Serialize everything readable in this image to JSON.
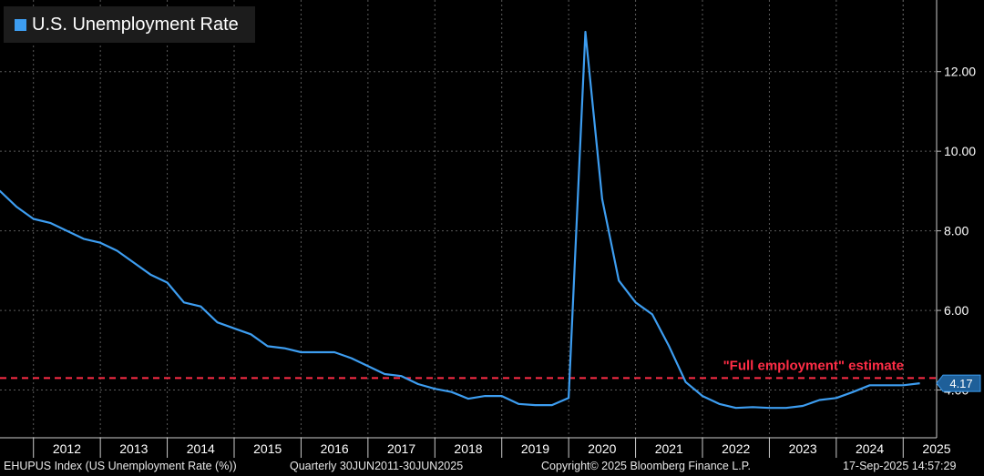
{
  "legend": {
    "label": "U.S. Unemployment Rate",
    "color": "#3d9df0"
  },
  "annotation": {
    "text": "\"Full employment\" estimate",
    "value": 4.3,
    "color": "#ff2d46"
  },
  "last_value": {
    "text": "4.17",
    "value": 4.17
  },
  "footer": {
    "left": "EHUPUS Index (US Unemployment Rate (%))",
    "middle": "Quarterly 30JUN2011-30JUN2025",
    "right": "Copyright© 2025 Bloomberg Finance L.P.",
    "timestamp": "17-Sep-2025 14:57:29"
  },
  "chart_data": {
    "type": "line",
    "title": "",
    "xlabel": "",
    "ylabel": "",
    "ylim": [
      2.8,
      13.8
    ],
    "y_ticks": [
      "4.00",
      "6.00",
      "8.00",
      "10.00",
      "12.00"
    ],
    "x_ticks": [
      "2012",
      "2013",
      "2014",
      "2015",
      "2016",
      "2017",
      "2018",
      "2019",
      "2020",
      "2021",
      "2022",
      "2023",
      "2024",
      "2025"
    ],
    "grid": true,
    "series": [
      {
        "name": "U.S. Unemployment Rate",
        "color": "#3d9df0",
        "x": [
          "2011-Q2",
          "2011-Q3",
          "2011-Q4",
          "2012-Q1",
          "2012-Q2",
          "2012-Q3",
          "2012-Q4",
          "2013-Q1",
          "2013-Q2",
          "2013-Q3",
          "2013-Q4",
          "2014-Q1",
          "2014-Q2",
          "2014-Q3",
          "2014-Q4",
          "2015-Q1",
          "2015-Q2",
          "2015-Q3",
          "2015-Q4",
          "2016-Q1",
          "2016-Q2",
          "2016-Q3",
          "2016-Q4",
          "2017-Q1",
          "2017-Q2",
          "2017-Q3",
          "2017-Q4",
          "2018-Q1",
          "2018-Q2",
          "2018-Q3",
          "2018-Q4",
          "2019-Q1",
          "2019-Q2",
          "2019-Q3",
          "2019-Q4",
          "2020-Q1",
          "2020-Q2",
          "2020-Q3",
          "2020-Q4",
          "2021-Q1",
          "2021-Q2",
          "2021-Q3",
          "2021-Q4",
          "2022-Q1",
          "2022-Q2",
          "2022-Q3",
          "2022-Q4",
          "2023-Q1",
          "2023-Q2",
          "2023-Q3",
          "2023-Q4",
          "2024-Q1",
          "2024-Q2",
          "2024-Q3",
          "2024-Q4",
          "2025-Q1",
          "2025-Q2"
        ],
        "values": [
          9.1,
          9.0,
          8.6,
          8.3,
          8.2,
          8.0,
          7.8,
          7.7,
          7.5,
          7.2,
          6.9,
          6.7,
          6.2,
          6.1,
          5.7,
          5.55,
          5.4,
          5.1,
          5.05,
          4.95,
          4.95,
          4.95,
          4.8,
          4.6,
          4.4,
          4.35,
          4.15,
          4.03,
          3.95,
          3.78,
          3.85,
          3.85,
          3.65,
          3.62,
          3.62,
          3.8,
          13.0,
          8.8,
          6.75,
          6.2,
          5.9,
          5.1,
          4.2,
          3.85,
          3.65,
          3.55,
          3.57,
          3.55,
          3.55,
          3.6,
          3.75,
          3.8,
          3.95,
          4.12,
          4.12,
          4.12,
          4.17
        ]
      }
    ]
  }
}
